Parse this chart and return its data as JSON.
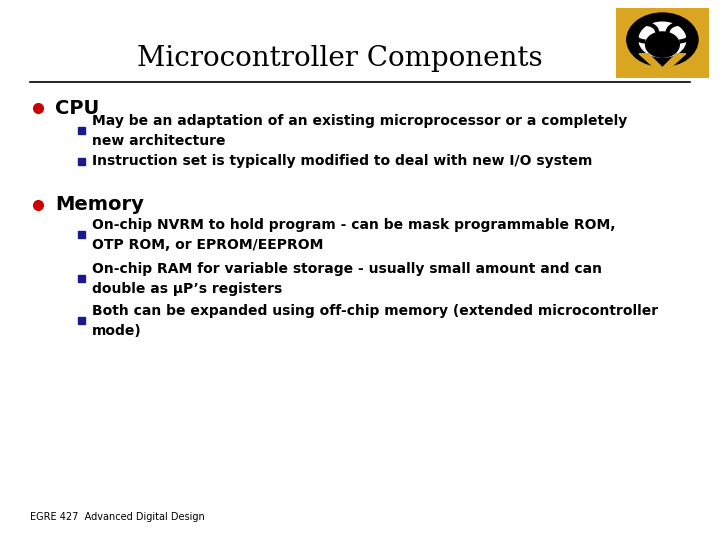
{
  "title": "Microcontroller Components",
  "title_fontsize": 20,
  "title_font": "serif",
  "title_color": "#000000",
  "bg_color": "#ffffff",
  "line_color": "#000000",
  "bullet1_label": "CPU",
  "bullet1_color": "#cc0000",
  "bullet1_fontsize": 14,
  "sub_bullet_color": "#1a1a8c",
  "sub_bullet_fontsize": 10,
  "sub_bullet1a": "May be an adaptation of an existing microprocessor or a completely\nnew architecture",
  "sub_bullet1b": "Instruction set is typically modified to deal with new I/O system",
  "bullet2_label": "Memory",
  "bullet2_color": "#cc0000",
  "bullet2_fontsize": 14,
  "sub_bullet2a": "On-chip NVRM to hold program - can be mask programmable ROM,\nOTP ROM, or EPROM/EEPROM",
  "sub_bullet2b": "On-chip RAM for variable storage - usually small amount and can\ndouble as μP’s registers",
  "sub_bullet2c": "Both can be expanded using off-chip memory (extended microcontroller\nmode)",
  "footer": "EGRE 427  Advanced Digital Design",
  "footer_fontsize": 7,
  "footer_color": "#000000",
  "gold_color": "#DAA520",
  "black_color": "#000000"
}
